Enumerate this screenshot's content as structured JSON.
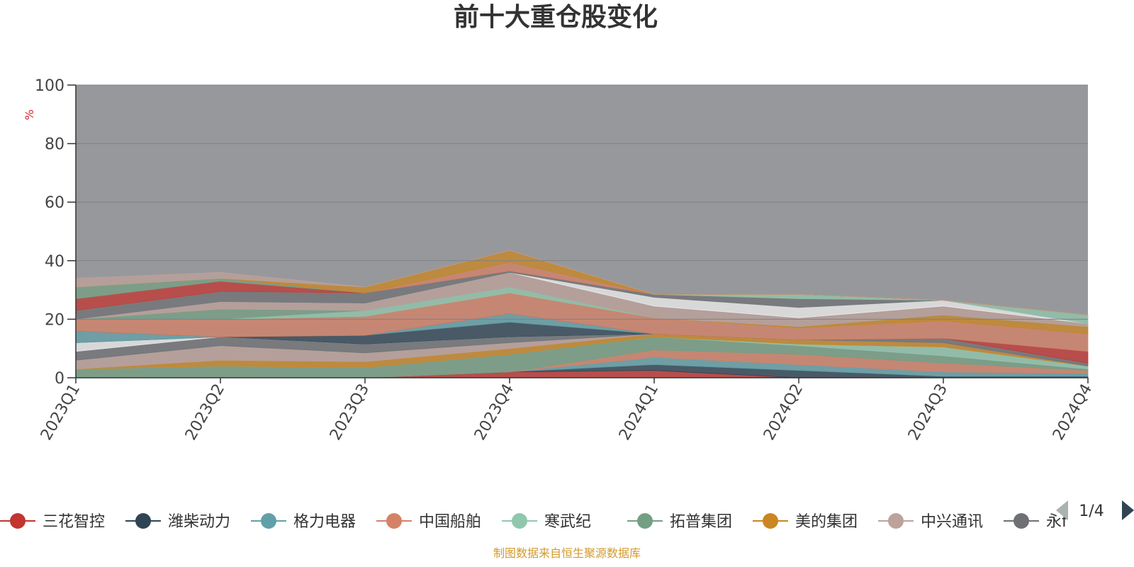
{
  "title": "前十大重仓股变化",
  "y_unit": "%",
  "source_note": "制图数据来自恒生聚源数据库",
  "legend_pager": {
    "page_text": "1/4"
  },
  "legend": [
    {
      "name": "三花智控",
      "color": "#c23531"
    },
    {
      "name": "潍柴动力",
      "color": "#2f4554"
    },
    {
      "name": "格力电器",
      "color": "#61a0a8"
    },
    {
      "name": "中国船舶",
      "color": "#d48265"
    },
    {
      "name": "寒武纪",
      "color": "#91c7ae"
    },
    {
      "name": "拓普集团",
      "color": "#749f83"
    },
    {
      "name": "美的集团",
      "color": "#ca8622"
    },
    {
      "name": "中兴通讯",
      "color": "#bda29a"
    },
    {
      "name": "永f",
      "color": "#6e7074"
    }
  ],
  "chart_data": {
    "type": "area",
    "stacked": true,
    "title": "前十大重仓股变化",
    "ylabel": "%",
    "ylim": [
      0,
      100
    ],
    "yticks": [
      0,
      20,
      40,
      60,
      80,
      100
    ],
    "categories": [
      "2023Q1",
      "2023Q2",
      "2023Q3",
      "2023Q4",
      "2024Q1",
      "2024Q2",
      "2024Q3",
      "2024Q4"
    ],
    "grid": true,
    "legend_position": "bottom",
    "background_fill": "#97989c",
    "layers": [
      {
        "color": "#c23531",
        "values": [
          0.0,
          0.0,
          0.0,
          2.0,
          2.5,
          0.0,
          0.0,
          0.0
        ]
      },
      {
        "color": "#2f4554",
        "values": [
          0.0,
          0.0,
          0.0,
          0.0,
          2.0,
          2.5,
          0.5,
          0.5
        ]
      },
      {
        "color": "#61a0a8",
        "values": [
          0.0,
          0.0,
          0.0,
          0.0,
          2.5,
          2.0,
          1.5,
          1.0
        ]
      },
      {
        "color": "#d48265",
        "values": [
          0.0,
          0.0,
          0.0,
          0.0,
          2.5,
          3.5,
          3.0,
          1.0
        ]
      },
      {
        "color": "#749f83",
        "values": [
          3.0,
          4.0,
          3.5,
          6.0,
          4.5,
          3.0,
          2.5,
          0.5
        ]
      },
      {
        "color": "#91c7ae",
        "values": [
          0.0,
          0.0,
          0.0,
          0.0,
          0.0,
          0.5,
          3.0,
          1.0
        ]
      },
      {
        "color": "#ca8622",
        "values": [
          0.0,
          2.0,
          2.0,
          2.0,
          1.0,
          1.5,
          1.5,
          0.0
        ]
      },
      {
        "color": "#bda29a",
        "values": [
          3.0,
          5.0,
          3.0,
          2.0,
          0.0,
          0.0,
          0.0,
          0.0
        ]
      },
      {
        "color": "#6e7074",
        "values": [
          3.0,
          3.0,
          3.0,
          2.0,
          0.0,
          0.0,
          1.5,
          1.0
        ]
      },
      {
        "color": "#eeeeee",
        "values": [
          3.0,
          0.0,
          0.0,
          0.0,
          0.0,
          0.0,
          0.0,
          0.0
        ]
      },
      {
        "color": "#2f4554",
        "values": [
          0.0,
          0.0,
          3.0,
          5.0,
          0.0,
          0.0,
          0.0,
          0.0
        ]
      },
      {
        "color": "#61a0a8",
        "values": [
          4.0,
          0.0,
          0.0,
          3.0,
          0.0,
          0.0,
          0.0,
          0.0
        ]
      },
      {
        "color": "#c23531",
        "values": [
          0.0,
          0.0,
          0.0,
          0.0,
          0.0,
          0.0,
          0.0,
          4.0
        ]
      },
      {
        "color": "#d48265",
        "values": [
          4.0,
          6.0,
          6.5,
          7.0,
          5.5,
          4.0,
          6.0,
          6.0
        ]
      },
      {
        "color": "#ca8622",
        "values": [
          0.0,
          0.0,
          0.0,
          0.0,
          0.0,
          0.5,
          2.0,
          2.5
        ]
      },
      {
        "color": "#91c7ae",
        "values": [
          0.0,
          0.0,
          2.0,
          2.0,
          0.0,
          0.0,
          0.0,
          0.0
        ]
      },
      {
        "color": "#749f83",
        "values": [
          0.0,
          3.5,
          0.0,
          0.0,
          0.0,
          0.0,
          0.0,
          0.0
        ]
      },
      {
        "color": "#bda29a",
        "values": [
          0.0,
          2.5,
          2.5,
          5.0,
          4.0,
          3.0,
          3.0,
          1.0
        ]
      },
      {
        "color": "#eeeeee",
        "values": [
          0.0,
          0.0,
          0.0,
          0.0,
          3.0,
          3.5,
          2.0,
          0.0
        ]
      },
      {
        "color": "#6e7074",
        "values": [
          3.0,
          3.5,
          3.5,
          0.5,
          1.0,
          3.0,
          0.0,
          0.0
        ]
      },
      {
        "color": "#91c7ae",
        "values": [
          0.0,
          0.0,
          0.0,
          0.0,
          0.0,
          1.5,
          0.0,
          3.0
        ]
      },
      {
        "color": "#c23531",
        "values": [
          4.0,
          3.5,
          0.0,
          0.0,
          0.0,
          0.0,
          0.0,
          0.0
        ]
      },
      {
        "color": "#d48265",
        "values": [
          0.0,
          0.0,
          0.0,
          3.0,
          0.0,
          0.0,
          0.0,
          0.0
        ]
      },
      {
        "color": "#749f83",
        "values": [
          4.0,
          1.0,
          0.0,
          0.0,
          0.0,
          0.0,
          0.0,
          0.0
        ]
      },
      {
        "color": "#ca8622",
        "values": [
          0.0,
          0.0,
          2.0,
          4.0,
          0.0,
          0.0,
          0.0,
          0.0
        ]
      },
      {
        "color": "#bda29a",
        "values": [
          3.0,
          2.0,
          0.0,
          0.0,
          0.0,
          0.0,
          0.0,
          0.0
        ]
      }
    ]
  }
}
